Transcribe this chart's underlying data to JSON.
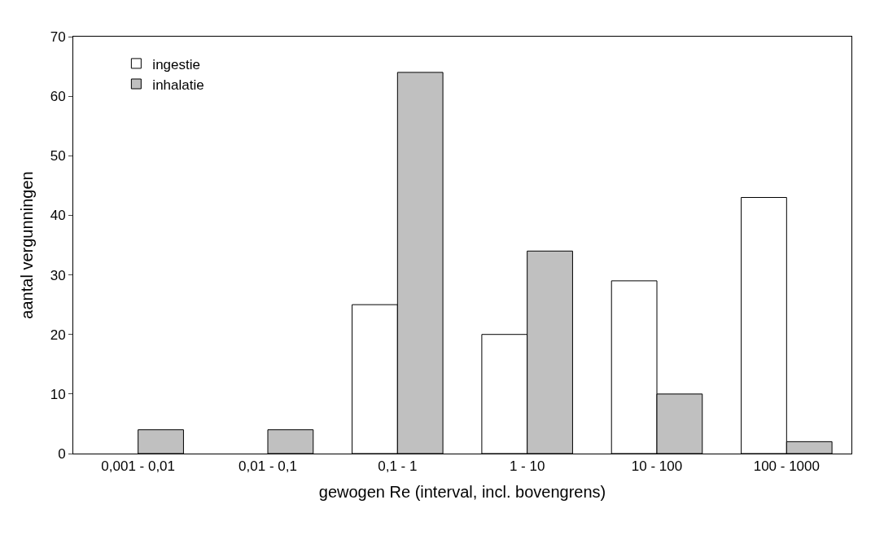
{
  "chart_data": {
    "type": "bar",
    "xlabel": "gewogen Re (interval, incl. bovengrens)",
    "ylabel": "aantal vergunningen",
    "categories": [
      "0,001 - 0,01",
      "0,01 - 0,1",
      "0,1 - 1",
      "1 - 10",
      "10 - 100",
      "100 - 1000"
    ],
    "series": [
      {
        "name": "ingestie",
        "color": "#ffffff",
        "values": [
          null,
          null,
          25,
          20,
          29,
          43
        ]
      },
      {
        "name": "inhalatie",
        "color": "#c0c0c0",
        "values": [
          4,
          4,
          64,
          34,
          10,
          2
        ]
      }
    ],
    "ylim": [
      0,
      70
    ],
    "yticks": [
      0,
      10,
      20,
      30,
      40,
      50,
      60,
      70
    ],
    "grid": false,
    "legend": "top left"
  }
}
